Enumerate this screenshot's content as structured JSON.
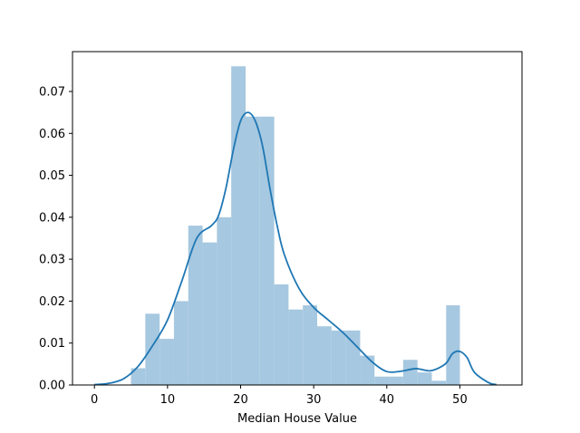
{
  "chart_data": {
    "type": "bar",
    "title": "",
    "xlabel": "Median House Value",
    "ylabel": "",
    "xlim": [
      -3.0,
      58.5
    ],
    "ylim": [
      0,
      0.0795
    ],
    "grid": false,
    "x_ticks": [
      0,
      10,
      20,
      30,
      40,
      50
    ],
    "x_tick_labels": [
      "0",
      "10",
      "20",
      "30",
      "40",
      "50"
    ],
    "y_ticks": [
      0.0,
      0.01,
      0.02,
      0.03,
      0.04,
      0.05,
      0.06,
      0.07
    ],
    "y_tick_labels": [
      "0.00",
      "0.01",
      "0.02",
      "0.03",
      "0.04",
      "0.05",
      "0.06",
      "0.07"
    ],
    "histogram": {
      "color": "#a6c8e0",
      "bin_edges": [
        5.0,
        6.96,
        8.92,
        10.88,
        12.84,
        14.8,
        16.76,
        18.72,
        20.68,
        22.64,
        24.6,
        26.56,
        28.52,
        30.48,
        32.44,
        34.4,
        36.36,
        38.32,
        40.28,
        42.24,
        44.2,
        46.16,
        48.12,
        50.0
      ],
      "densities": [
        0.004,
        0.017,
        0.011,
        0.02,
        0.038,
        0.034,
        0.04,
        0.076,
        0.064,
        0.064,
        0.024,
        0.018,
        0.019,
        0.014,
        0.013,
        0.013,
        0.007,
        0.002,
        0.002,
        0.006,
        0.003,
        0.001,
        0.019
      ]
    },
    "kde": {
      "color": "#1f77b4",
      "x": [
        0,
        2,
        4,
        6,
        8,
        10,
        12,
        14,
        16,
        17,
        18,
        19,
        20,
        21,
        22,
        23,
        24,
        25,
        26,
        28,
        30,
        32,
        34,
        36,
        38,
        40,
        42,
        44,
        46,
        48,
        49,
        50,
        51,
        52,
        54,
        55
      ],
      "y": [
        0.0001,
        0.0004,
        0.0015,
        0.0045,
        0.0095,
        0.0155,
        0.025,
        0.035,
        0.038,
        0.0405,
        0.047,
        0.056,
        0.063,
        0.065,
        0.063,
        0.057,
        0.047,
        0.038,
        0.031,
        0.023,
        0.0185,
        0.0155,
        0.0125,
        0.009,
        0.0055,
        0.0032,
        0.0033,
        0.0039,
        0.0034,
        0.005,
        0.0075,
        0.008,
        0.0065,
        0.003,
        0.0005,
        0.0001
      ]
    }
  }
}
